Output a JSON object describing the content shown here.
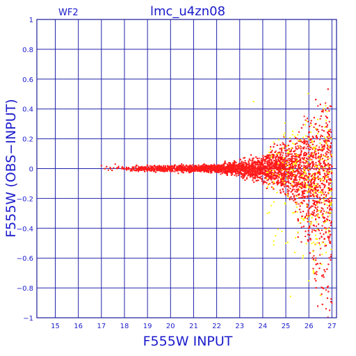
{
  "chart_data": {
    "type": "scatter",
    "title": "lmc_u4zn08",
    "panel_label": "WF2",
    "xlabel": "F555W INPUT",
    "ylabel": "F555W (OBS−INPUT)",
    "xlim": [
      14.2,
      27.2
    ],
    "ylim": [
      -1,
      1
    ],
    "x_ticks": [
      15,
      16,
      17,
      18,
      19,
      20,
      21,
      22,
      23,
      24,
      25,
      26,
      27
    ],
    "y_ticks": [
      1,
      0.8,
      0.6,
      0.4,
      0.2,
      0,
      -0.2,
      -0.4,
      -0.6,
      -0.8,
      -1
    ],
    "x_tick_labels": [
      "15",
      "16",
      "17",
      "18",
      "19",
      "20",
      "21",
      "22",
      "23",
      "24",
      "25",
      "26",
      "27"
    ],
    "y_tick_labels": [
      "1",
      "0.8",
      "0.6",
      "0.4",
      "0.2",
      "0",
      "−0.2",
      "−0.4",
      "−0.6",
      "−0.8",
      "−1"
    ],
    "grid": true,
    "colors": {
      "frame": "#1a1a99",
      "text": "#1a1acc",
      "series_main": "#ff1a1a",
      "series_highlight": "#ffff00"
    },
    "series": [
      {
        "color": "#ff1a1a",
        "description_of_distribution": "dense band centred near 0 from x=17 to 27, spread growing with magnitude",
        "points": [
          [
            17.0,
            0.02
          ],
          [
            17.3,
            -0.01
          ],
          [
            17.6,
            0.03
          ],
          [
            18.0,
            0.0
          ],
          [
            18.4,
            0.01
          ],
          [
            19.0,
            0.0
          ],
          [
            19.5,
            0.01
          ],
          [
            20.0,
            0.0
          ],
          [
            20.5,
            0.01
          ],
          [
            21.0,
            0.01
          ],
          [
            21.5,
            0.0
          ],
          [
            22.0,
            0.02
          ],
          [
            22.5,
            0.0
          ],
          [
            23.0,
            0.03
          ],
          [
            23.5,
            -0.02
          ],
          [
            24.0,
            0.05
          ],
          [
            24.5,
            -0.05
          ],
          [
            25.0,
            0.1
          ],
          [
            25.5,
            0.2
          ],
          [
            25.8,
            0.35
          ],
          [
            26.0,
            -0.3
          ],
          [
            26.3,
            -0.6
          ],
          [
            26.6,
            -0.8
          ],
          [
            26.9,
            -0.95
          ],
          [
            27.0,
            -0.9
          ]
        ]
      },
      {
        "color": "#ffff00",
        "description_of_distribution": "sparse points mostly between x=24 and 27",
        "points": [
          [
            23.6,
            0.45
          ],
          [
            24.2,
            -0.3
          ],
          [
            24.6,
            0.1
          ],
          [
            25.0,
            -0.5
          ],
          [
            25.3,
            0.25
          ],
          [
            25.6,
            0.15
          ],
          [
            25.8,
            0.0
          ],
          [
            26.0,
            -0.15
          ],
          [
            26.2,
            -0.7
          ],
          [
            26.5,
            -0.85
          ],
          [
            26.0,
            0.2
          ],
          [
            25.7,
            -0.05
          ]
        ]
      }
    ]
  }
}
